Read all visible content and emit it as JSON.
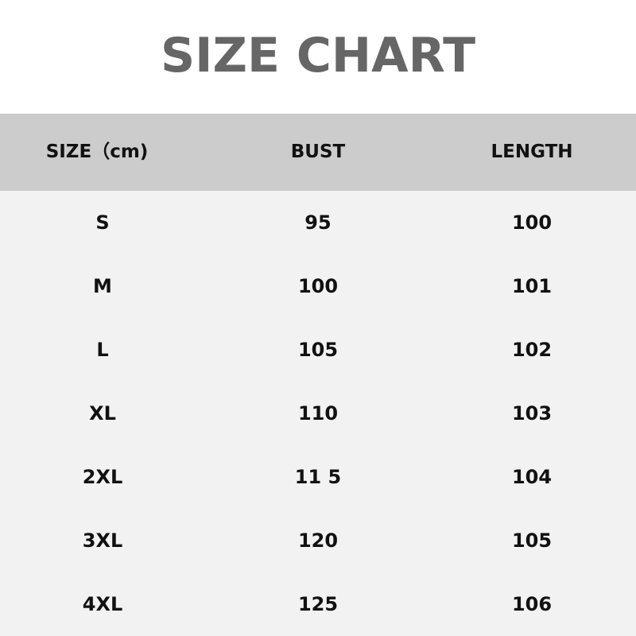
{
  "title": "SIZE CHART",
  "columns": [
    "SIZE（cm)",
    "BUST",
    "LENGTH"
  ],
  "rows": [
    [
      "S",
      "95",
      "100"
    ],
    [
      "M",
      "100",
      "101"
    ],
    [
      "L",
      "105",
      "102"
    ],
    [
      "XL",
      "110",
      "103"
    ],
    [
      "2XL",
      "11 5",
      "104"
    ],
    [
      "3XL",
      "120",
      "105"
    ],
    [
      "4XL",
      "125",
      "106"
    ]
  ],
  "colors": {
    "title": "#666666",
    "header_bg": "#cccccc",
    "body_bg": "#f2f2f2"
  }
}
